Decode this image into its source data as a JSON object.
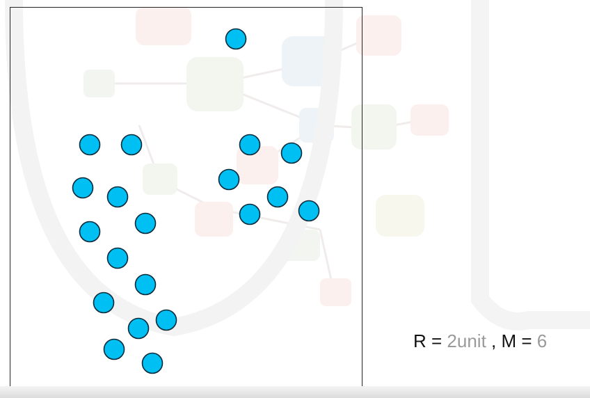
{
  "caption": {
    "r_label": "R = ",
    "r_value": "2unit",
    "separator": " , M = ",
    "m_value": "6"
  },
  "colors": {
    "point_fill": "#00bff3",
    "point_stroke": "#0a2a3a",
    "frame": "#222222",
    "muted_text": "#9a9a9a"
  },
  "points": [
    {
      "id": 1
    },
    {
      "id": 2
    },
    {
      "id": 3
    },
    {
      "id": 4
    },
    {
      "id": 5
    },
    {
      "id": 6
    },
    {
      "id": 7
    },
    {
      "id": 8
    },
    {
      "id": 9
    },
    {
      "id": 10
    },
    {
      "id": 11
    },
    {
      "id": 12
    },
    {
      "id": 13
    },
    {
      "id": 14
    },
    {
      "id": 15
    },
    {
      "id": 16
    },
    {
      "id": 17
    },
    {
      "id": 18
    },
    {
      "id": 19
    },
    {
      "id": 20
    },
    {
      "id": 21
    },
    {
      "id": 22
    }
  ]
}
